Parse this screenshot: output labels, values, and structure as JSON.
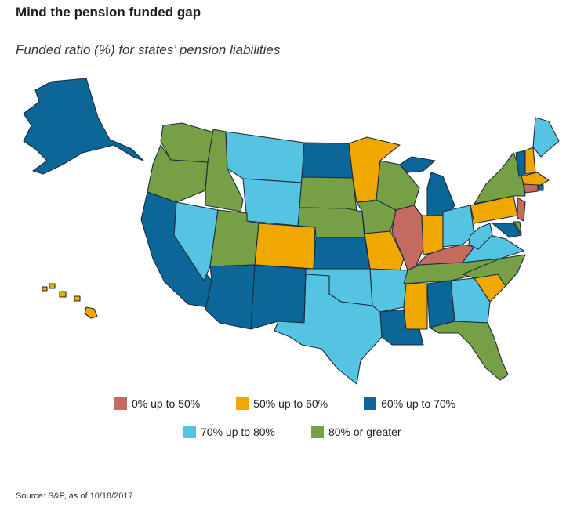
{
  "title": "Mind the pension funded gap",
  "subtitle": "Funded ratio (%) for states’ pension liabilities",
  "source": "Source: S&P, as of 10/18/2017",
  "colors": {
    "c0": "#c46b5f",
    "c50": "#f0a800",
    "c60": "#0b6797",
    "c70": "#55c4e3",
    "c80": "#76a045"
  },
  "legend": [
    {
      "label": "0% up to 50%",
      "color": "#c46b5f"
    },
    {
      "label": "50% up to 60%",
      "color": "#f0a800"
    },
    {
      "label": "60% up to 70%",
      "color": "#0b6797"
    },
    {
      "label": "70% up to 80%",
      "color": "#55c4e3"
    },
    {
      "label": "80% or greater",
      "color": "#76a045"
    }
  ],
  "states": {
    "WA": "80",
    "OR": "80",
    "ID": "80",
    "MT": "70",
    "WY": "70",
    "CA": "60",
    "NV": "70",
    "UT": "80",
    "AZ": "60",
    "CO": "50",
    "NM": "60",
    "ND": "60",
    "SD": "80",
    "NE": "80",
    "KS": "60",
    "OK": "70",
    "TX": "70",
    "MN": "50",
    "IA": "80",
    "MO": "50",
    "AR": "70",
    "LA": "60",
    "WI": "80",
    "IL": "0",
    "MI": "60",
    "IN": "50",
    "OH": "70",
    "KY": "0",
    "TN": "80",
    "MS": "50",
    "AL": "60",
    "GA": "70",
    "FL": "80",
    "SC": "50",
    "NC": "80",
    "VA": "70",
    "WV": "70",
    "MD": "60",
    "DE": "80",
    "PA": "50",
    "NJ": "0",
    "NY": "80",
    "CT": "0",
    "RI": "60",
    "MA": "50",
    "VT": "60",
    "NH": "50",
    "ME": "70",
    "AK": "60",
    "HI": "50"
  }
}
